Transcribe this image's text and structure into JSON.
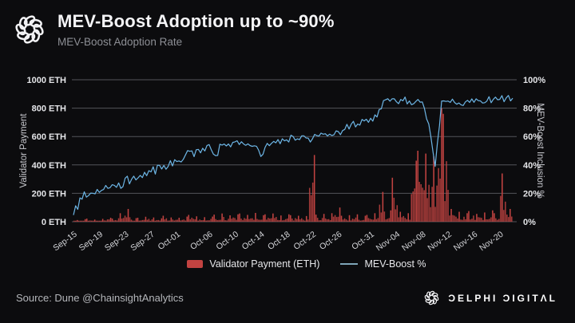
{
  "header": {
    "title": "MEV-Boost Adoption up to ~90%",
    "subtitle": "MEV-Boost Adoption Rate"
  },
  "footer": {
    "source": "Source: Dune @ChainsightAnalytics",
    "brand": "ƆELPHI ƆIGITΛL"
  },
  "colors": {
    "background": "#0c0c0e",
    "grid": "#53545a",
    "bar_red": "#c24341",
    "line_blue": "#6db6e6",
    "legend_line": "#7fa6b8",
    "tick_text": "#e4e5e8",
    "xtick_text": "#d4d5d9"
  },
  "chart_data": {
    "type": "bar+line",
    "title": "MEV-Boost Adoption Rate",
    "grid": true,
    "legend_position": "bottom",
    "days": 69,
    "x_tick_labels": [
      "Sep-15",
      "Sep-19",
      "Sep-23",
      "Sep-27",
      "Oct-01",
      "Oct-06",
      "Oct-10",
      "Oct-14",
      "Oct-18",
      "Oct-22",
      "Oct-26",
      "Oct-31",
      "Nov-04",
      "Nov-08",
      "Nov-12",
      "Nov-16",
      "Nov-20"
    ],
    "x_tick_days": [
      0,
      4,
      8,
      12,
      16,
      21,
      25,
      29,
      33,
      37,
      41,
      46,
      50,
      54,
      58,
      62,
      66
    ],
    "y_left": {
      "label": "Validator Payment",
      "ticks": [
        "0 ETH",
        "200 ETH",
        "400 ETH",
        "600 ETH",
        "800 ETH",
        "1000 ETH"
      ],
      "min": 0,
      "max": 1000
    },
    "y_right": {
      "label": "MEV-Boost Inclusion %",
      "ticks": [
        "0%",
        "20%",
        "40%",
        "60%",
        "80%",
        "100%"
      ],
      "min": 0,
      "max": 100
    },
    "series": [
      {
        "name": "Validator Payment (ETH)",
        "type": "bar",
        "axis": "left",
        "color": "#c24341",
        "values": [
          12,
          18,
          22,
          15,
          20,
          28,
          22,
          60,
          90,
          25,
          28,
          35,
          30,
          24,
          42,
          30,
          28,
          36,
          48,
          38,
          32,
          36,
          50,
          58,
          45,
          52,
          58,
          48,
          62,
          46,
          52,
          58,
          44,
          52,
          46,
          42,
          40,
          470,
          50,
          55,
          60,
          100,
          42,
          46,
          52,
          42,
          48,
          60,
          210,
          80,
          310,
          70,
          60,
          430,
          500,
          480,
          460,
          800,
          760,
          90,
          70,
          60,
          75,
          55,
          65,
          80,
          60,
          340,
          90
        ]
      },
      {
        "name": "MEV-Boost %",
        "type": "line",
        "axis": "right",
        "color": "#6db6e6",
        "values": [
          6,
          15,
          19,
          21,
          22,
          24,
          26,
          27,
          29,
          31,
          33,
          35,
          37,
          38,
          40,
          42,
          44,
          46,
          48,
          50,
          52,
          53,
          48,
          55,
          55,
          56,
          56,
          55,
          53,
          47,
          55,
          57,
          56,
          58,
          59,
          59,
          58,
          59,
          60,
          61,
          62,
          63,
          65,
          68,
          70,
          71,
          72,
          74,
          85,
          84,
          85,
          86,
          85,
          84,
          85,
          70,
          40,
          84,
          84,
          85,
          83,
          86,
          85,
          86,
          85,
          87,
          86,
          87,
          87
        ]
      }
    ]
  }
}
